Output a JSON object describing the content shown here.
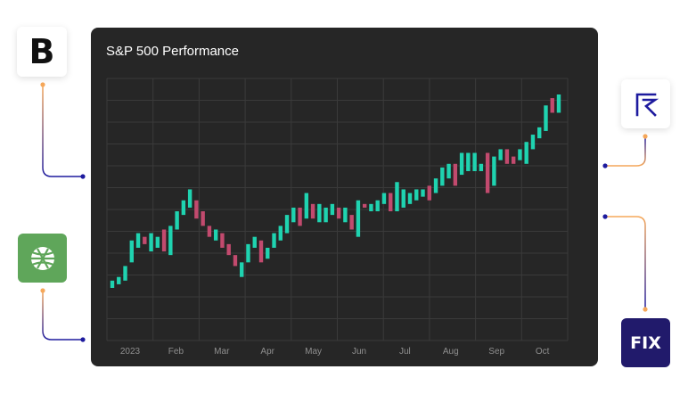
{
  "logos": [
    {
      "name": "b-logo",
      "text": "B"
    },
    {
      "name": "green-globe-logo",
      "text": ""
    },
    {
      "name": "r-logo",
      "text": ""
    },
    {
      "name": "fix-logo",
      "text": "FIX"
    }
  ],
  "colors": {
    "up": "#1fd3b0",
    "down": "#c24a6e",
    "card_bg": "#262626",
    "connector_line": "#1d1a9e",
    "connector_fade": "#f6a85a",
    "green_logo_bg": "#5fa65a",
    "fix_logo_bg": "#211a6b"
  },
  "chart_data": {
    "type": "candlestick",
    "title": "S&P 500 Performance",
    "x_tick_labels": [
      "2023",
      "Feb",
      "Mar",
      "Apr",
      "May",
      "Jun",
      "Jul",
      "Aug",
      "Sep",
      "Oct"
    ],
    "ylim": [
      0,
      6
    ],
    "grid": true,
    "candles": [
      {
        "o": 1.2,
        "c": 1.4
      },
      {
        "o": 1.3,
        "c": 1.5
      },
      {
        "o": 1.4,
        "c": 1.8
      },
      {
        "o": 1.9,
        "c": 2.5
      },
      {
        "o": 2.3,
        "c": 2.7
      },
      {
        "o": 2.6,
        "c": 2.4
      },
      {
        "o": 2.2,
        "c": 2.7
      },
      {
        "o": 2.3,
        "c": 2.6
      },
      {
        "o": 2.8,
        "c": 2.2
      },
      {
        "o": 2.1,
        "c": 2.9
      },
      {
        "o": 2.8,
        "c": 3.3
      },
      {
        "o": 3.2,
        "c": 3.6
      },
      {
        "o": 3.4,
        "c": 3.9
      },
      {
        "o": 3.6,
        "c": 3.1
      },
      {
        "o": 3.3,
        "c": 2.9
      },
      {
        "o": 2.9,
        "c": 2.6
      },
      {
        "o": 2.5,
        "c": 2.8
      },
      {
        "o": 2.7,
        "c": 2.3
      },
      {
        "o": 2.4,
        "c": 2.1
      },
      {
        "o": 2.1,
        "c": 1.8
      },
      {
        "o": 1.5,
        "c": 1.9
      },
      {
        "o": 1.9,
        "c": 2.4
      },
      {
        "o": 2.3,
        "c": 2.6
      },
      {
        "o": 2.5,
        "c": 1.9
      },
      {
        "o": 2.0,
        "c": 2.3
      },
      {
        "o": 2.3,
        "c": 2.7
      },
      {
        "o": 2.5,
        "c": 2.9
      },
      {
        "o": 2.7,
        "c": 3.2
      },
      {
        "o": 3.0,
        "c": 3.4
      },
      {
        "o": 3.4,
        "c": 2.9
      },
      {
        "o": 3.1,
        "c": 3.8
      },
      {
        "o": 3.5,
        "c": 3.1
      },
      {
        "o": 3.0,
        "c": 3.5
      },
      {
        "o": 3.0,
        "c": 3.4
      },
      {
        "o": 3.2,
        "c": 3.5
      },
      {
        "o": 3.4,
        "c": 3.1
      },
      {
        "o": 3.0,
        "c": 3.4
      },
      {
        "o": 3.2,
        "c": 2.8
      },
      {
        "o": 2.6,
        "c": 3.6
      },
      {
        "o": 3.5,
        "c": 3.4
      },
      {
        "o": 3.3,
        "c": 3.5
      },
      {
        "o": 3.3,
        "c": 3.6
      },
      {
        "o": 3.5,
        "c": 3.8
      },
      {
        "o": 3.8,
        "c": 3.3
      },
      {
        "o": 3.3,
        "c": 4.1
      },
      {
        "o": 3.4,
        "c": 3.9
      },
      {
        "o": 3.5,
        "c": 3.8
      },
      {
        "o": 3.6,
        "c": 3.9
      },
      {
        "o": 3.7,
        "c": 3.9
      },
      {
        "o": 4.0,
        "c": 3.6
      },
      {
        "o": 3.8,
        "c": 4.2
      },
      {
        "o": 4.0,
        "c": 4.5
      },
      {
        "o": 4.2,
        "c": 4.6
      },
      {
        "o": 4.6,
        "c": 4.0
      },
      {
        "o": 4.3,
        "c": 4.9
      },
      {
        "o": 4.4,
        "c": 4.9
      },
      {
        "o": 4.4,
        "c": 4.9
      },
      {
        "o": 4.4,
        "c": 4.6
      },
      {
        "o": 4.9,
        "c": 3.8
      },
      {
        "o": 4.0,
        "c": 4.8
      },
      {
        "o": 4.7,
        "c": 5.0
      },
      {
        "o": 5.0,
        "c": 4.6
      },
      {
        "o": 4.8,
        "c": 4.6
      },
      {
        "o": 4.7,
        "c": 5.0
      },
      {
        "o": 4.6,
        "c": 5.2
      },
      {
        "o": 5.0,
        "c": 5.4
      },
      {
        "o": 5.3,
        "c": 5.6
      },
      {
        "o": 5.5,
        "c": 6.2
      },
      {
        "o": 6.4,
        "c": 6.0
      },
      {
        "o": 6.0,
        "c": 6.5
      }
    ]
  }
}
